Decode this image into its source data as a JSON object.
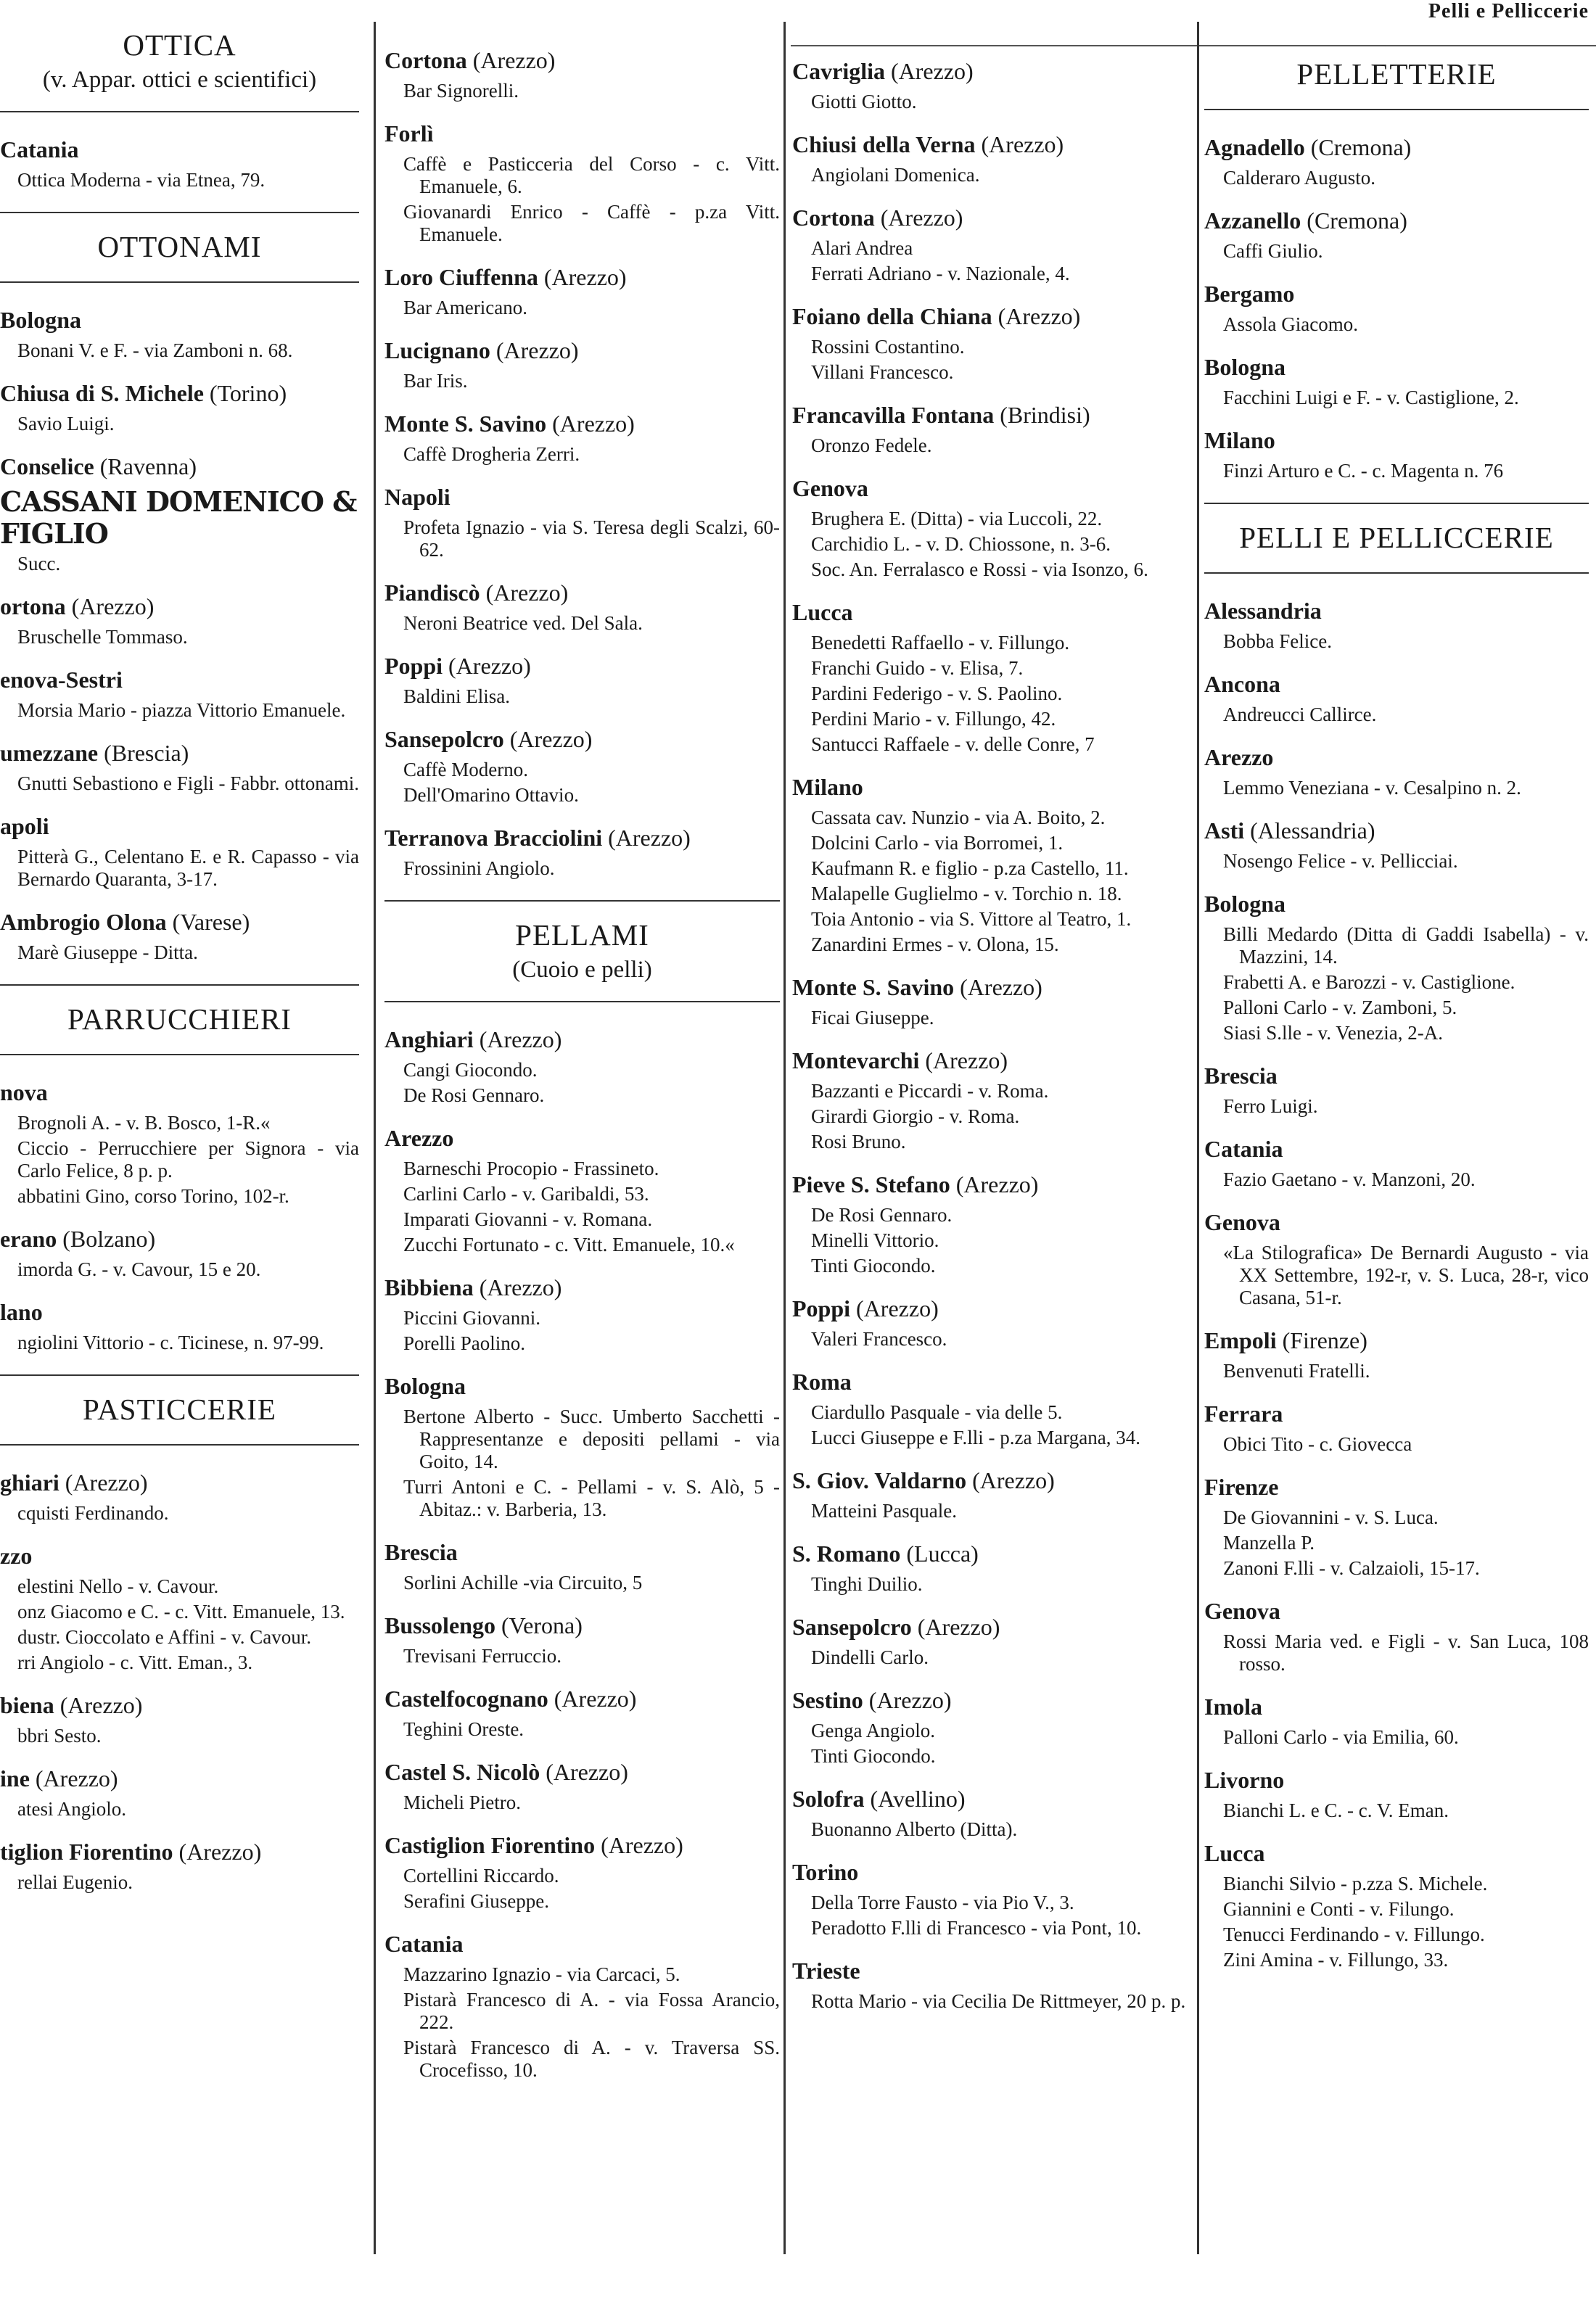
{
  "running_head": "Pelli e Pelliccerie",
  "columns": [
    [
      {
        "section": "OTTICA",
        "sub": "(v. Appar. ottici e scientifici)"
      },
      {
        "city": "Catania",
        "prov": "",
        "entries": [
          "Ottica Moderna - via Etnea, 79."
        ]
      },
      {
        "section": "OTTONAMI"
      },
      {
        "city": "Bologna",
        "prov": "",
        "entries": [
          "Bonani V. e F. - via Zamboni n. 68."
        ]
      },
      {
        "city": "Chiusa di S. Michele",
        "prov": "(Torino)",
        "entries": [
          "Savio Luigi."
        ]
      },
      {
        "city": "Conselice",
        "prov": "(Ravenna)",
        "big": "CASSANI DOMENICO & FIGLIO",
        "entries": [
          "Succ."
        ]
      },
      {
        "city": "ortona",
        "prov": "(Arezzo)",
        "entries": [
          "Bruschelle Tommaso."
        ]
      },
      {
        "city": "enova-Sestri",
        "prov": "",
        "entries": [
          "Morsia Mario - piazza Vittorio Emanuele."
        ]
      },
      {
        "city": "umezzane",
        "prov": "(Brescia)",
        "entries": [
          "Gnutti Sebastiono e Figli - Fabbr. ottonami."
        ]
      },
      {
        "city": "apoli",
        "prov": "",
        "entries": [
          "Pitterà G., Celentano E. e R. Capasso - via Bernardo Quaranta, 3-17."
        ]
      },
      {
        "city": "Ambrogio Olona",
        "prov": "(Varese)",
        "entries": [
          "Marè Giuseppe - Ditta."
        ]
      },
      {
        "section": "PARRUCCHIERI"
      },
      {
        "city": "nova",
        "prov": "",
        "entries": [
          "Brognoli A. - v. B. Bosco, 1-R.«",
          "Ciccio - Perrucchiere per Signora - via Carlo Felice, 8 p. p.",
          "abbatini Gino, corso Torino, 102-r."
        ]
      },
      {
        "city": "erano",
        "prov": "(Bolzano)",
        "entries": [
          "imorda G. - v. Cavour, 15 e 20."
        ]
      },
      {
        "city": "lano",
        "prov": "",
        "entries": [
          "ngiolini Vittorio - c. Ticinese, n. 97-99."
        ]
      },
      {
        "section": "PASTICCERIE"
      },
      {
        "city": "ghiari",
        "prov": "(Arezzo)",
        "entries": [
          "cquisti Ferdinando."
        ]
      },
      {
        "city": "zzo",
        "prov": "",
        "entries": [
          "elestini Nello - v. Cavour.",
          "onz Giacomo e C. - c. Vitt. Emanuele, 13.",
          "dustr. Cioccolato e Affini - v. Cavour.",
          "rri Angiolo - c. Vitt. Eman., 3."
        ]
      },
      {
        "city": "biena",
        "prov": "(Arezzo)",
        "entries": [
          "bbri Sesto."
        ]
      },
      {
        "city": "ine",
        "prov": "(Arezzo)",
        "entries": [
          "atesi Angiolo."
        ]
      },
      {
        "city": "tiglion Fiorentino",
        "prov": "(Arezzo)",
        "entries": [
          "rellai Eugenio."
        ]
      }
    ],
    [
      {
        "city": "Cortona",
        "prov": "(Arezzo)",
        "entries": [
          "Bar Signorelli."
        ]
      },
      {
        "city": "Forlì",
        "prov": "",
        "entries": [
          "Caffè e Pasticceria del Corso - c. Vitt. Emanuele, 6.",
          "Giovanardi Enrico - Caffè - p.za Vitt. Emanuele."
        ]
      },
      {
        "city": "Loro Ciuffenna",
        "prov": "(Arezzo)",
        "entries": [
          "Bar Americano."
        ]
      },
      {
        "city": "Lucignano",
        "prov": "(Arezzo)",
        "entries": [
          "Bar Iris."
        ]
      },
      {
        "city": "Monte S. Savino",
        "prov": "(Arezzo)",
        "entries": [
          "Caffè Drogheria Zerri."
        ]
      },
      {
        "city": "Napoli",
        "prov": "",
        "entries": [
          "Profeta Ignazio - via S. Teresa degli Scalzi, 60-62."
        ]
      },
      {
        "city": "Piandiscò",
        "prov": "(Arezzo)",
        "entries": [
          "Neroni Beatrice ved. Del Sala."
        ]
      },
      {
        "city": "Poppi",
        "prov": "(Arezzo)",
        "entries": [
          "Baldini Elisa."
        ]
      },
      {
        "city": "Sansepolcro",
        "prov": "(Arezzo)",
        "entries": [
          "Caffè Moderno.",
          "Dell'Omarino Ottavio."
        ]
      },
      {
        "city": "Terranova Bracciolini",
        "prov": "(Arezzo)",
        "entries": [
          "Frossinini Angiolo."
        ]
      },
      {
        "section": "PELLAMI",
        "sub": "(Cuoio e pelli)"
      },
      {
        "city": "Anghiari",
        "prov": "(Arezzo)",
        "entries": [
          "Cangi Giocondo.",
          "De Rosi Gennaro."
        ]
      },
      {
        "city": "Arezzo",
        "prov": "",
        "entries": [
          "Barneschi Procopio - Frassineto.",
          "Carlini Carlo - v. Garibaldi, 53.",
          "Imparati Giovanni - v. Romana.",
          "Zucchi Fortunato - c. Vitt. Emanuele, 10.«"
        ]
      },
      {
        "city": "Bibbiena",
        "prov": "(Arezzo)",
        "entries": [
          "Piccini Giovanni.",
          "Porelli Paolino."
        ]
      },
      {
        "city": "Bologna",
        "prov": "",
        "entries": [
          "Bertone Alberto - Succ. Umberto Sacchetti - Rappresentanze e depositi pellami - via Goito, 14.",
          "Turri Antoni e C. - Pellami - v. S. Alò, 5 - Abitaz.: v. Barberia, 13."
        ]
      },
      {
        "city": "Brescia",
        "prov": "",
        "entries": [
          "Sorlini Achille -via Circuito, 5"
        ]
      },
      {
        "city": "Bussolengo",
        "prov": "(Verona)",
        "entries": [
          "Trevisani Ferruccio."
        ]
      },
      {
        "city": "Castelfocognano",
        "prov": "(Arezzo)",
        "entries": [
          "Teghini Oreste."
        ]
      },
      {
        "city": "Castel S. Nicolò",
        "prov": "(Arezzo)",
        "entries": [
          "Micheli Pietro."
        ]
      },
      {
        "city": "Castiglion Fiorentino",
        "prov": "(Arezzo)",
        "entries": [
          "Cortellini Riccardo.",
          "Serafini Giuseppe."
        ]
      },
      {
        "city": "Catania",
        "prov": "",
        "entries": [
          "Mazzarino Ignazio - via Carcaci, 5.",
          "Pistarà Francesco di A. - via Fossa Arancio, 222.",
          "Pistarà Francesco di A. - v. Traversa SS. Crocefisso, 10."
        ]
      }
    ],
    [
      {
        "city": "Cavriglia",
        "prov": "(Arezzo)",
        "entries": [
          "Giotti Giotto."
        ]
      },
      {
        "city": "Chiusi della Verna",
        "prov": "(Arezzo)",
        "entries": [
          "Angiolani Domenica."
        ]
      },
      {
        "city": "Cortona",
        "prov": "(Arezzo)",
        "entries": [
          "Alari Andrea",
          "Ferrati Adriano - v. Nazionale, 4."
        ]
      },
      {
        "city": "Foiano della Chiana",
        "prov": "(Arezzo)",
        "entries": [
          "Rossini Costantino.",
          "Villani Francesco."
        ]
      },
      {
        "city": "Francavilla Fontana",
        "prov": "(Brindisi)",
        "entries": [
          "Oronzo Fedele."
        ]
      },
      {
        "city": "Genova",
        "prov": "",
        "entries": [
          "Brughera E. (Ditta) - via Luccoli, 22.",
          "Carchidio L. - v. D. Chiossone, n. 3-6.",
          "Soc. An. Ferralasco e Rossi - via Isonzo, 6."
        ]
      },
      {
        "city": "Lucca",
        "prov": "",
        "entries": [
          "Benedetti Raffaello - v. Fillungo.",
          "Franchi Guido - v. Elisa, 7.",
          "Pardini Federigo - v. S. Paolino.",
          "Perdini Mario - v. Fillungo, 42.",
          "Santucci Raffaele - v. delle Conre, 7"
        ]
      },
      {
        "city": "Milano",
        "prov": "",
        "entries": [
          "Cassata cav. Nunzio - via A. Boito, 2.",
          "Dolcini Carlo - via Borromei, 1.",
          "Kaufmann R. e figlio - p.za Castello, 11.",
          "Malapelle Guglielmo - v. Torchio n. 18.",
          "Toia Antonio - via S. Vittore al Teatro, 1.",
          "Zanardini Ermes - v. Olona, 15."
        ]
      },
      {
        "city": "Monte S. Savino",
        "prov": "(Arezzo)",
        "entries": [
          "Ficai Giuseppe."
        ]
      },
      {
        "city": "Montevarchi",
        "prov": "(Arezzo)",
        "entries": [
          "Bazzanti e Piccardi - v. Roma.",
          "Girardi Giorgio - v. Roma.",
          "Rosi Bruno."
        ]
      },
      {
        "city": "Pieve S. Stefano",
        "prov": "(Arezzo)",
        "entries": [
          "De Rosi Gennaro.",
          "Minelli Vittorio.",
          "Tinti Giocondo."
        ]
      },
      {
        "city": "Poppi",
        "prov": "(Arezzo)",
        "entries": [
          "Valeri Francesco."
        ]
      },
      {
        "city": "Roma",
        "prov": "",
        "entries": [
          "Ciardullo Pasquale - via delle 5.",
          "Lucci Giuseppe e F.lli - p.za Margana, 34."
        ]
      },
      {
        "city": "S. Giov. Valdarno",
        "prov": "(Arezzo)",
        "entries": [
          "Matteini Pasquale."
        ]
      },
      {
        "city": "S. Romano",
        "prov": "(Lucca)",
        "entries": [
          "Tinghi Duilio."
        ]
      },
      {
        "city": "Sansepolcro",
        "prov": "(Arezzo)",
        "entries": [
          "Dindelli Carlo."
        ]
      },
      {
        "city": "Sestino",
        "prov": "(Arezzo)",
        "entries": [
          "Genga Angiolo.",
          "Tinti Giocondo."
        ]
      },
      {
        "city": "Solofra",
        "prov": "(Avellino)",
        "entries": [
          "Buonanno Alberto (Ditta)."
        ]
      },
      {
        "city": "Torino",
        "prov": "",
        "entries": [
          "Della Torre Fausto - via Pio V., 3.",
          "Peradotto F.lli di Francesco - via Pont, 10."
        ]
      },
      {
        "city": "Trieste",
        "prov": "",
        "entries": [
          "Rotta Mario - via Cecilia De Rittmeyer, 20 p. p."
        ]
      }
    ],
    [
      {
        "section": "PELLETTERIE"
      },
      {
        "city": "Agnadello",
        "prov": "(Cremona)",
        "entries": [
          "Calderaro Augusto."
        ]
      },
      {
        "city": "Azzanello",
        "prov": "(Cremona)",
        "entries": [
          "Caffi Giulio."
        ]
      },
      {
        "city": "Bergamo",
        "prov": "",
        "entries": [
          "Assola Giacomo."
        ]
      },
      {
        "city": "Bologna",
        "prov": "",
        "entries": [
          "Facchini Luigi e F. - v. Castiglione, 2."
        ]
      },
      {
        "city": "Milano",
        "prov": "",
        "entries": [
          "Finzi Arturo e C. - c. Magenta n. 76"
        ]
      },
      {
        "section": "PELLI E PELLICCERIE"
      },
      {
        "city": "Alessandria",
        "prov": "",
        "entries": [
          "Bobba Felice."
        ]
      },
      {
        "city": "Ancona",
        "prov": "",
        "entries": [
          "Andreucci Callirce."
        ]
      },
      {
        "city": "Arezzo",
        "prov": "",
        "entries": [
          "Lemmo Veneziana - v. Cesalpino n. 2."
        ]
      },
      {
        "city": "Asti",
        "prov": "(Alessandria)",
        "entries": [
          "Nosengo Felice - v. Pellicciai."
        ]
      },
      {
        "city": "Bologna",
        "prov": "",
        "entries": [
          "Billi Medardo (Ditta di Gaddi Isabella) - v. Mazzini, 14.",
          "Frabetti A. e Barozzi - v. Castiglione.",
          "Palloni Carlo - v. Zamboni, 5.",
          "Siasi S.lle - v. Venezia, 2-A."
        ]
      },
      {
        "city": "Brescia",
        "prov": "",
        "entries": [
          "Ferro Luigi."
        ]
      },
      {
        "city": "Catania",
        "prov": "",
        "entries": [
          "Fazio Gaetano - v. Manzoni, 20."
        ]
      },
      {
        "city": "Genova",
        "prov": "",
        "entries": [
          "«La Stilografica» De Bernardi Augusto - via XX Settembre, 192-r, v. S. Luca, 28-r, vico Casana, 51-r."
        ]
      },
      {
        "city": "Empoli",
        "prov": "(Firenze)",
        "entries": [
          "Benvenuti Fratelli."
        ]
      },
      {
        "city": "Ferrara",
        "prov": "",
        "entries": [
          "Obici Tito - c. Giovecca"
        ]
      },
      {
        "city": "Firenze",
        "prov": "",
        "entries": [
          "De Giovannini - v. S. Luca.",
          "Manzella P.",
          "Zanoni F.lli - v. Calzaioli, 15-17."
        ]
      },
      {
        "city": "Genova",
        "prov": "",
        "entries": [
          "Rossi Maria ved. e Figli - v. San Luca, 108 rosso."
        ]
      },
      {
        "city": "Imola",
        "prov": "",
        "entries": [
          "Palloni Carlo - via Emilia, 60."
        ]
      },
      {
        "city": "Livorno",
        "prov": "",
        "entries": [
          "Bianchi L. e C. - c. V. Eman."
        ]
      },
      {
        "city": "Lucca",
        "prov": "",
        "entries": [
          "Bianchi Silvio - p.zza S. Michele.",
          "Giannini e Conti - v. Filungo.",
          "Tenucci Ferdinando - v. Fillungo.",
          "Zini Amina - v. Fillungo, 33."
        ]
      }
    ]
  ]
}
